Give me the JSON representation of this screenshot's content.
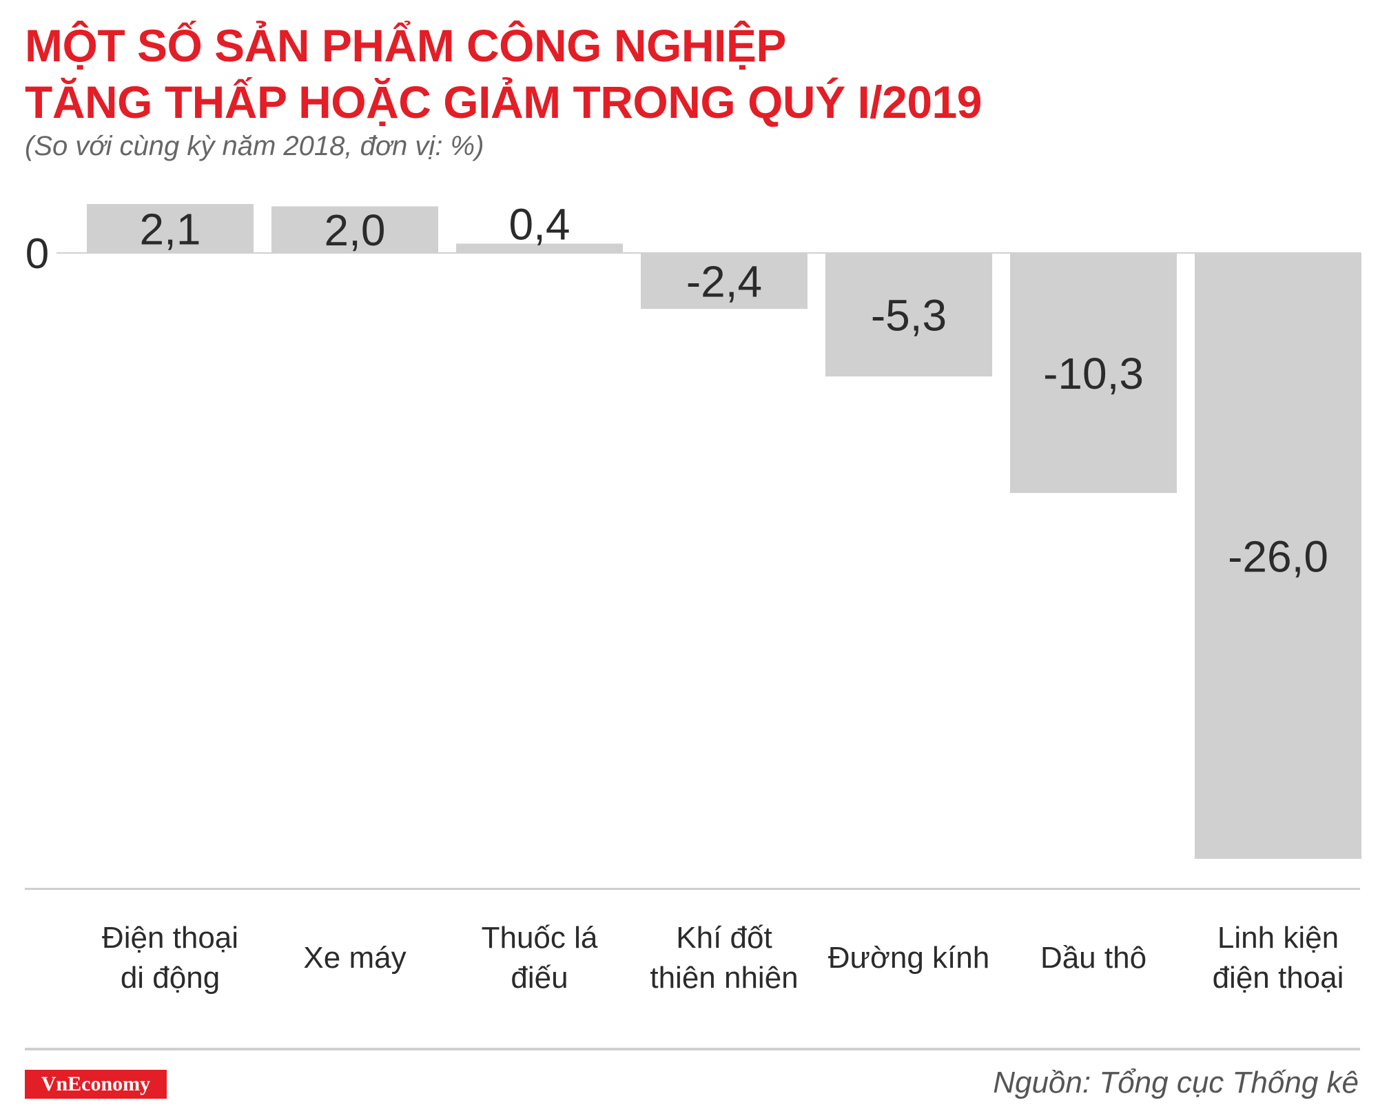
{
  "page": {
    "title_line1": "MỘT SỐ SẢN PHẨM CÔNG NGHIỆP",
    "title_line2": "TĂNG THẤP HOẶC GIẢM TRONG QUÝ I/2019",
    "subtitle": "(So với cùng kỳ năm 2018, đơn vị: %)",
    "source": "Nguồn: Tổng cục Thống kê",
    "brand": "VnEconomy"
  },
  "colors": {
    "title": "#e31e26",
    "bar": "#d0d0d0",
    "label": "#2b2b2b",
    "zero_line": "#d0d0d0",
    "brand_background": "#e31e26"
  },
  "chart_data": {
    "type": "bar",
    "title": "MỘT SỐ SẢN PHẨM CÔNG NGHIỆP TĂNG THẤP HOẶC GIẢM TRONG QUÝ I/2019",
    "subtitle": "(So với cùng kỳ năm 2018, đơn vị: %)",
    "categories": [
      [
        "Điện thoại",
        "di động"
      ],
      [
        "Xe máy"
      ],
      [
        "Thuốc lá",
        "điếu"
      ],
      [
        "Khí đốt",
        "thiên nhiên"
      ],
      [
        "Đường kính"
      ],
      [
        "Dầu thô"
      ],
      [
        "Linh kiện",
        "điện thoại"
      ]
    ],
    "values": [
      2.1,
      2.0,
      0.4,
      -2.4,
      -5.3,
      -10.3,
      -26.0
    ],
    "value_labels": [
      "2,1",
      "2,0",
      "0,4",
      "-2,4",
      "-5,3",
      "-10,3",
      "-26,0"
    ],
    "y_ticks": [
      {
        "value": 0,
        "label": "0"
      }
    ],
    "ylim": [
      -26.0,
      2.1
    ],
    "xlabel": "",
    "ylabel": "",
    "grid": false,
    "legend": "none",
    "data_labels": true
  }
}
